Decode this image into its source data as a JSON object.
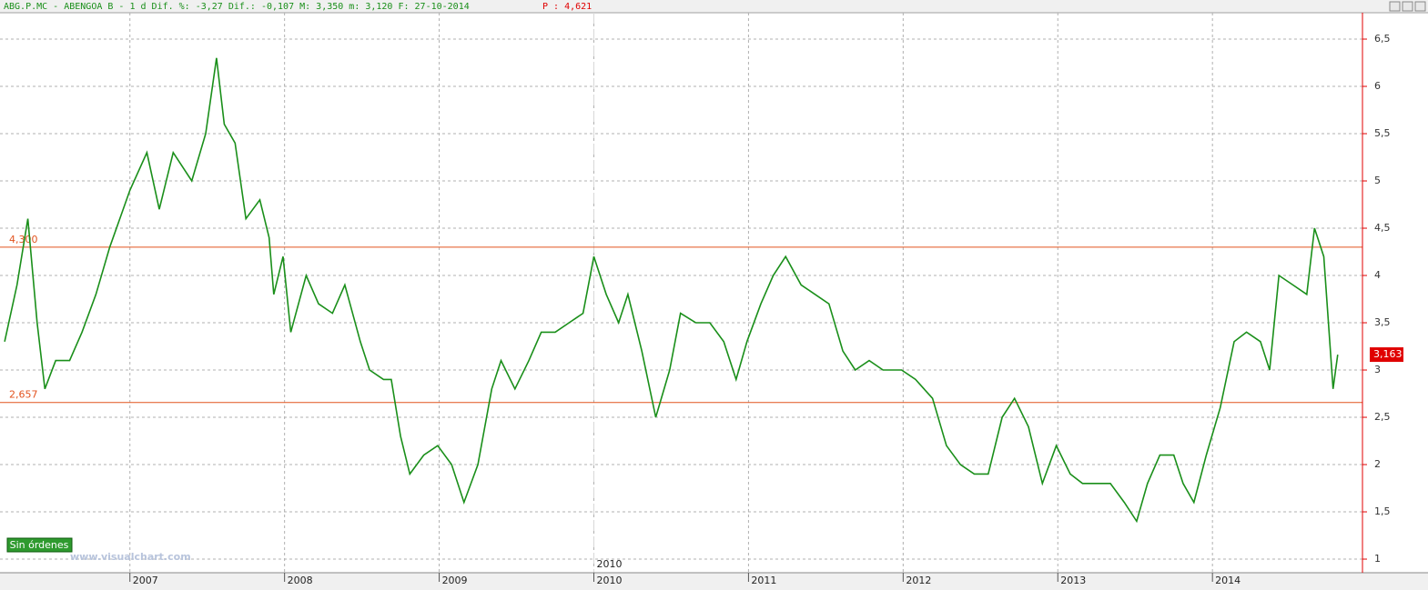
{
  "chart_data": {
    "type": "line",
    "header": "ABG.P.MC - ABENGOA B -  1 d Dif. %: -3,27 Dif.: -0,107 M: 3,350 m: 3,120 F: 27-10-2014",
    "header_price": "P : 4,621",
    "legend_box": "Sin órdenes",
    "watermark": "www.visualchart.com",
    "color": "#1a8f1a",
    "x": [
      2006.19,
      2006.27,
      2006.34,
      2006.4,
      2006.45,
      2006.52,
      2006.61,
      2006.69,
      2006.78,
      2006.87,
      2007.0,
      2007.11,
      2007.19,
      2007.28,
      2007.4,
      2007.49,
      2007.56,
      2007.61,
      2007.68,
      2007.75,
      2007.84,
      2007.9,
      2007.93,
      2007.99,
      2008.04,
      2008.14,
      2008.22,
      2008.31,
      2008.39,
      2008.49,
      2008.55,
      2008.64,
      2008.69,
      2008.75,
      2008.81,
      2008.9,
      2008.99,
      2009.08,
      2009.16,
      2009.25,
      2009.34,
      2009.4,
      2009.49,
      2009.58,
      2009.66,
      2009.75,
      2009.84,
      2009.93,
      2010.0,
      2010.08,
      2010.16,
      2010.22,
      2010.31,
      2010.4,
      2010.49,
      2010.56,
      2010.66,
      2010.75,
      2010.84,
      2010.92,
      2010.99,
      2011.08,
      2011.16,
      2011.24,
      2011.34,
      2011.43,
      2011.52,
      2011.61,
      2011.69,
      2011.78,
      2011.87,
      2011.99,
      2012.08,
      2012.19,
      2012.28,
      2012.37,
      2012.46,
      2012.55,
      2012.64,
      2012.72,
      2012.81,
      2012.9,
      2012.99,
      2013.08,
      2013.16,
      2013.25,
      2013.34,
      2013.43,
      2013.51,
      2013.58,
      2013.66,
      2013.75,
      2013.81,
      2013.88,
      2013.96,
      2014.05,
      2014.14,
      2014.22,
      2014.31,
      2014.37,
      2014.43,
      2014.52,
      2014.61,
      2014.66,
      2014.72,
      2014.78,
      2014.81
    ],
    "values": [
      3.3,
      3.9,
      4.6,
      3.5,
      2.8,
      3.1,
      3.1,
      3.4,
      3.8,
      4.3,
      4.9,
      5.3,
      4.7,
      5.3,
      5.0,
      5.5,
      6.3,
      5.6,
      5.4,
      4.6,
      4.8,
      4.4,
      3.8,
      4.2,
      3.4,
      4.0,
      3.7,
      3.6,
      3.9,
      3.3,
      3.0,
      2.9,
      2.9,
      2.3,
      1.9,
      2.1,
      2.2,
      2.0,
      1.6,
      2.0,
      2.8,
      3.1,
      2.8,
      3.1,
      3.4,
      3.4,
      3.5,
      3.6,
      4.2,
      3.8,
      3.5,
      3.8,
      3.2,
      2.5,
      3.0,
      3.6,
      3.5,
      3.5,
      3.3,
      2.9,
      3.3,
      3.7,
      4.0,
      4.2,
      3.9,
      3.8,
      3.7,
      3.2,
      3.0,
      3.1,
      3.0,
      3.0,
      2.9,
      2.7,
      2.2,
      2.0,
      1.9,
      1.9,
      2.5,
      2.7,
      2.4,
      1.8,
      2.2,
      1.9,
      1.8,
      1.8,
      1.8,
      1.6,
      1.4,
      1.8,
      2.1,
      2.1,
      1.8,
      1.6,
      2.1,
      2.6,
      3.3,
      3.4,
      3.3,
      3.0,
      4.0,
      3.9,
      3.8,
      4.5,
      4.2,
      2.8,
      3.163
    ],
    "xlim": [
      2006.16,
      2014.97
    ],
    "xticks": [
      2007,
      2008,
      2009,
      2010,
      2011,
      2012,
      2013,
      2014
    ],
    "ylim": [
      0.856,
      6.779
    ],
    "yticks": [
      1,
      {
        "value": 1.5,
        "label": "1,5"
      },
      2,
      {
        "value": 2.5,
        "label": "2,5"
      },
      3,
      {
        "value": 3.5,
        "label": "3,5"
      },
      4,
      {
        "value": 4.5,
        "label": "4,5"
      },
      5,
      {
        "value": 5.5,
        "label": "5,5"
      },
      6,
      {
        "value": 6.5,
        "label": "6,5"
      }
    ],
    "grid": true,
    "hlines": [
      {
        "value": 4.3,
        "label": "4,300"
      },
      {
        "value": 2.657,
        "label": "2,657"
      }
    ],
    "hline_color": "#e2531f",
    "last_value": {
      "value": 3.163,
      "label": "3,163"
    },
    "axis_color": "#e00000",
    "annotations": [
      {
        "text": "2010",
        "x": 2010
      }
    ]
  }
}
